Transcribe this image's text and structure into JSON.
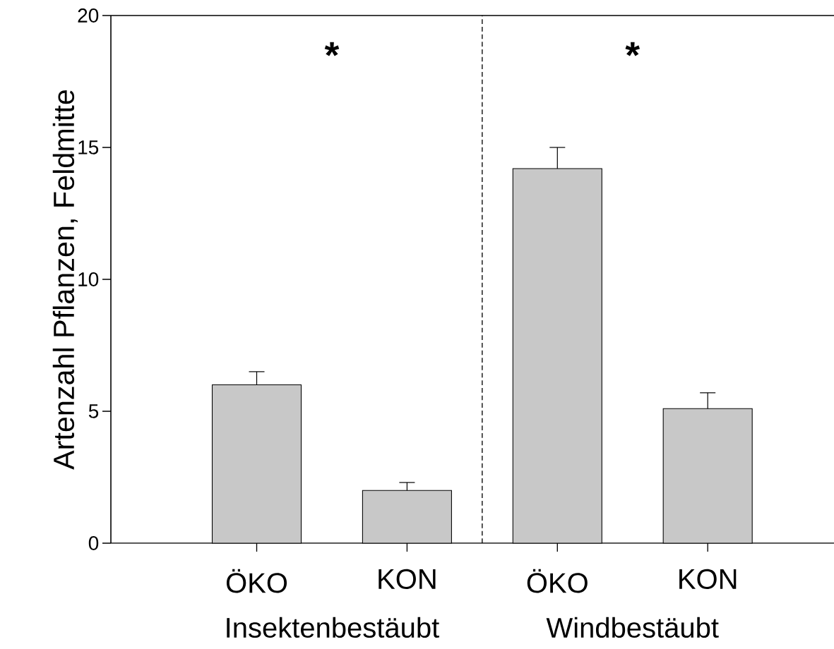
{
  "chart_data": {
    "type": "bar",
    "ylabel": "Artenzahl Pflanzen, Feldmitte",
    "categories": [
      "ÖKO",
      "KON",
      "ÖKO",
      "KON"
    ],
    "values": [
      6.0,
      2.0,
      14.2,
      5.1
    ],
    "errors": [
      [
        6.0,
        6.5
      ],
      [
        2.0,
        2.3
      ],
      [
        14.2,
        15.0
      ],
      [
        5.1,
        5.7
      ]
    ],
    "color": "#c8c8c8",
    "ylim": [
      0,
      20
    ],
    "yticks": [
      0,
      5,
      10,
      15,
      20
    ],
    "annotations": [
      "*",
      "*",
      "Insektenbestäubt",
      "Windbestäubt"
    ]
  }
}
